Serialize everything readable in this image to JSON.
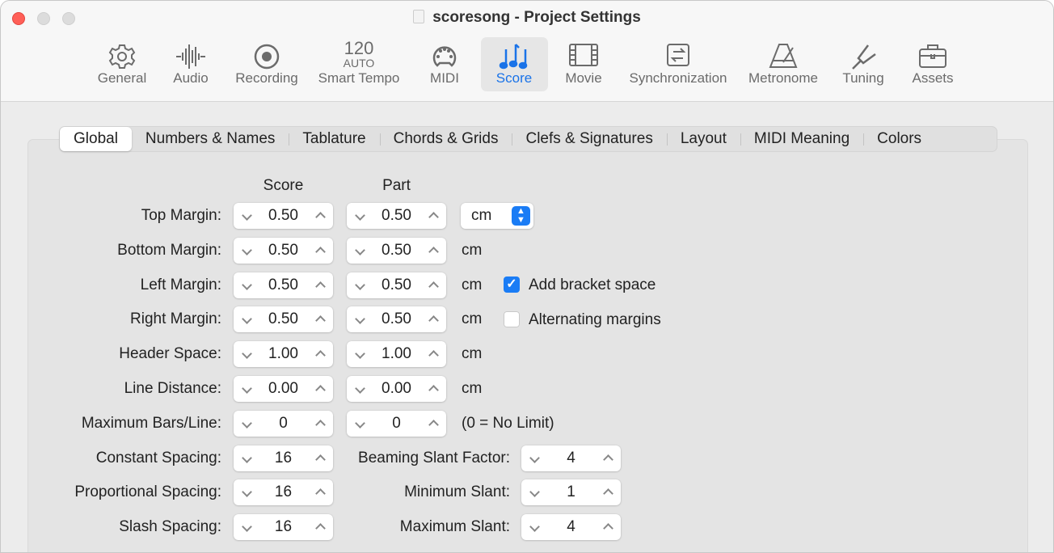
{
  "window": {
    "title": "scoresong - Project Settings"
  },
  "toolbar": [
    {
      "label": "General",
      "icon": "gear-icon"
    },
    {
      "label": "Audio",
      "icon": "waveform-icon"
    },
    {
      "label": "Recording",
      "icon": "record-icon"
    },
    {
      "label": "Smart Tempo",
      "icon": "tempo-icon",
      "tempo": "120",
      "mode": "AUTO"
    },
    {
      "label": "MIDI",
      "icon": "midi-port-icon"
    },
    {
      "label": "Score",
      "icon": "notes-icon",
      "selected": true
    },
    {
      "label": "Movie",
      "icon": "film-icon"
    },
    {
      "label": "Synchronization",
      "icon": "sync-icon"
    },
    {
      "label": "Metronome",
      "icon": "metronome-icon"
    },
    {
      "label": "Tuning",
      "icon": "tuning-fork-icon"
    },
    {
      "label": "Assets",
      "icon": "briefcase-icon"
    }
  ],
  "tabs": [
    "Global",
    "Numbers & Names",
    "Tablature",
    "Chords & Grids",
    "Clefs & Signatures",
    "Layout",
    "MIDI Meaning",
    "Colors"
  ],
  "selected_tab": "Global",
  "columns": {
    "score": "Score",
    "part": "Part"
  },
  "rows": [
    {
      "label": "Top Margin:",
      "score": "0.50",
      "part": "0.50"
    },
    {
      "label": "Bottom Margin:",
      "score": "0.50",
      "part": "0.50",
      "unit": "cm"
    },
    {
      "label": "Left Margin:",
      "score": "0.50",
      "part": "0.50",
      "unit": "cm"
    },
    {
      "label": "Right Margin:",
      "score": "0.50",
      "part": "0.50",
      "unit": "cm"
    },
    {
      "label": "Header Space:",
      "score": "1.00",
      "part": "1.00",
      "unit": "cm"
    },
    {
      "label": "Line Distance:",
      "score": "0.00",
      "part": "0.00",
      "unit": "cm"
    },
    {
      "label": "Maximum Bars/Line:",
      "score": "0",
      "part": "0",
      "unit": "(0 = No Limit)"
    },
    {
      "label": "Constant Spacing:",
      "score": "16"
    },
    {
      "label": "Proportional Spacing:",
      "score": "16"
    },
    {
      "label": "Slash Spacing:",
      "score": "16"
    }
  ],
  "unit_popup": {
    "value": "cm"
  },
  "checkboxes": [
    {
      "label": "Add bracket space",
      "checked": true
    },
    {
      "label": "Alternating margins",
      "checked": false
    }
  ],
  "slant": [
    {
      "label": "Beaming Slant Factor:",
      "value": "4"
    },
    {
      "label": "Minimum Slant:",
      "value": "1"
    },
    {
      "label": "Maximum Slant:",
      "value": "4"
    }
  ],
  "colors": {
    "accent": "#1a7cf5",
    "close": "#ff5f57"
  }
}
